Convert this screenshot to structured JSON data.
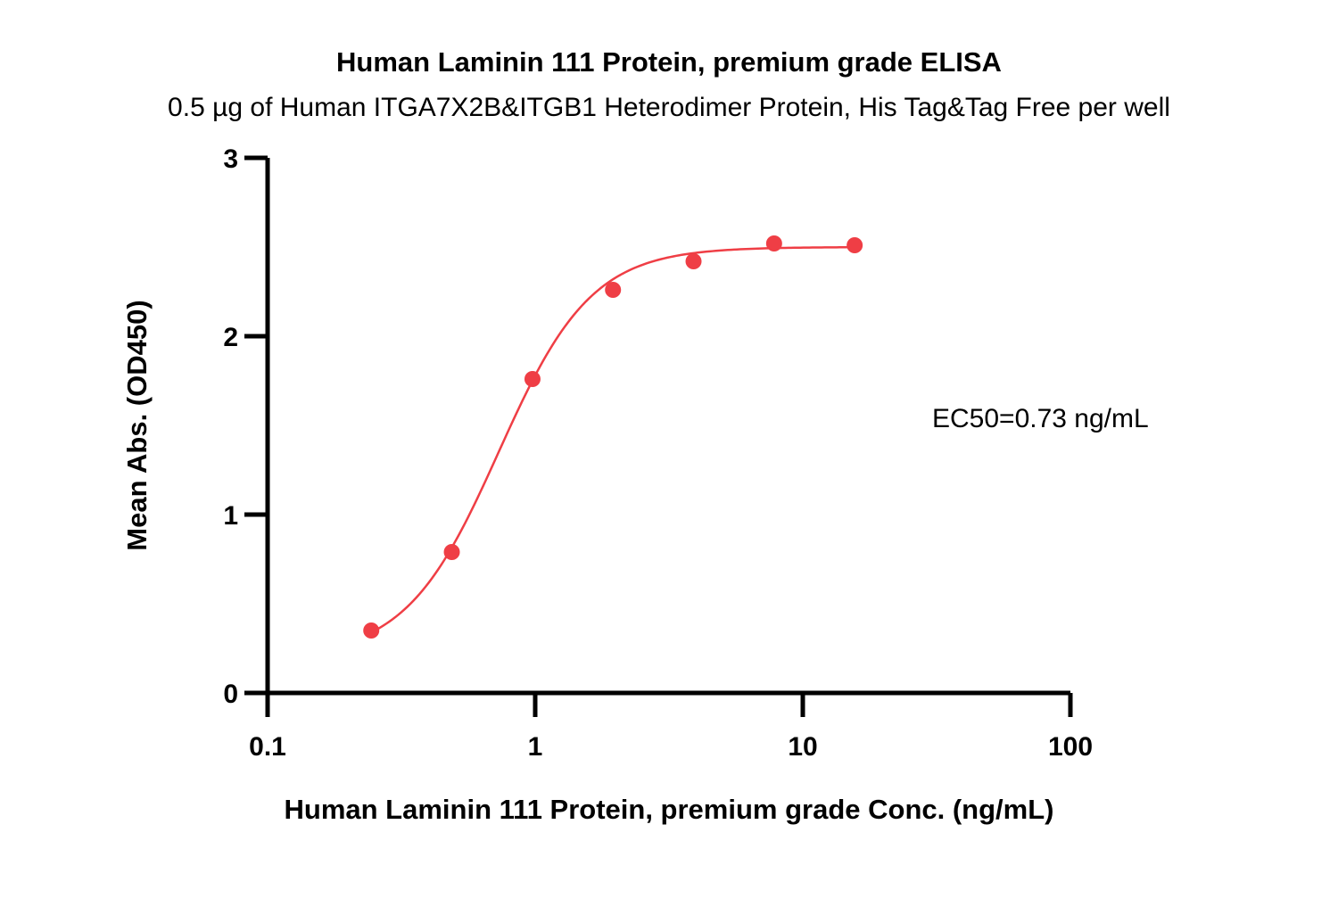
{
  "chart_data": {
    "type": "scatter",
    "title": "Human Laminin 111 Protein, premium grade ELISA",
    "subtitle": "0.5 µg of Human ITGA7X2B&ITGB1 Heterodimer Protein, His Tag&Tag Free per well",
    "xlabel": "Human Laminin 111 Protein, premium grade Conc. (ng/mL)",
    "ylabel": "Mean Abs. (OD450)",
    "xscale": "log",
    "xlim": [
      0.1,
      100
    ],
    "ylim": [
      0,
      3
    ],
    "xticks": [
      "0.1",
      "1",
      "10",
      "100"
    ],
    "yticks": [
      "0",
      "1",
      "2",
      "3"
    ],
    "x": [
      0.244,
      0.488,
      0.977,
      1.953,
      3.906,
      7.813,
      15.625
    ],
    "y": [
      0.35,
      0.79,
      1.76,
      2.26,
      2.42,
      2.52,
      2.51
    ],
    "fit": {
      "model": "4PL",
      "bottom": 0.2,
      "top": 2.5,
      "ec50": 0.73,
      "hill": 2.5
    },
    "annotation": "EC50=0.73 ng/mL",
    "color": "#ef3e45",
    "grid": false,
    "legend": "none"
  }
}
